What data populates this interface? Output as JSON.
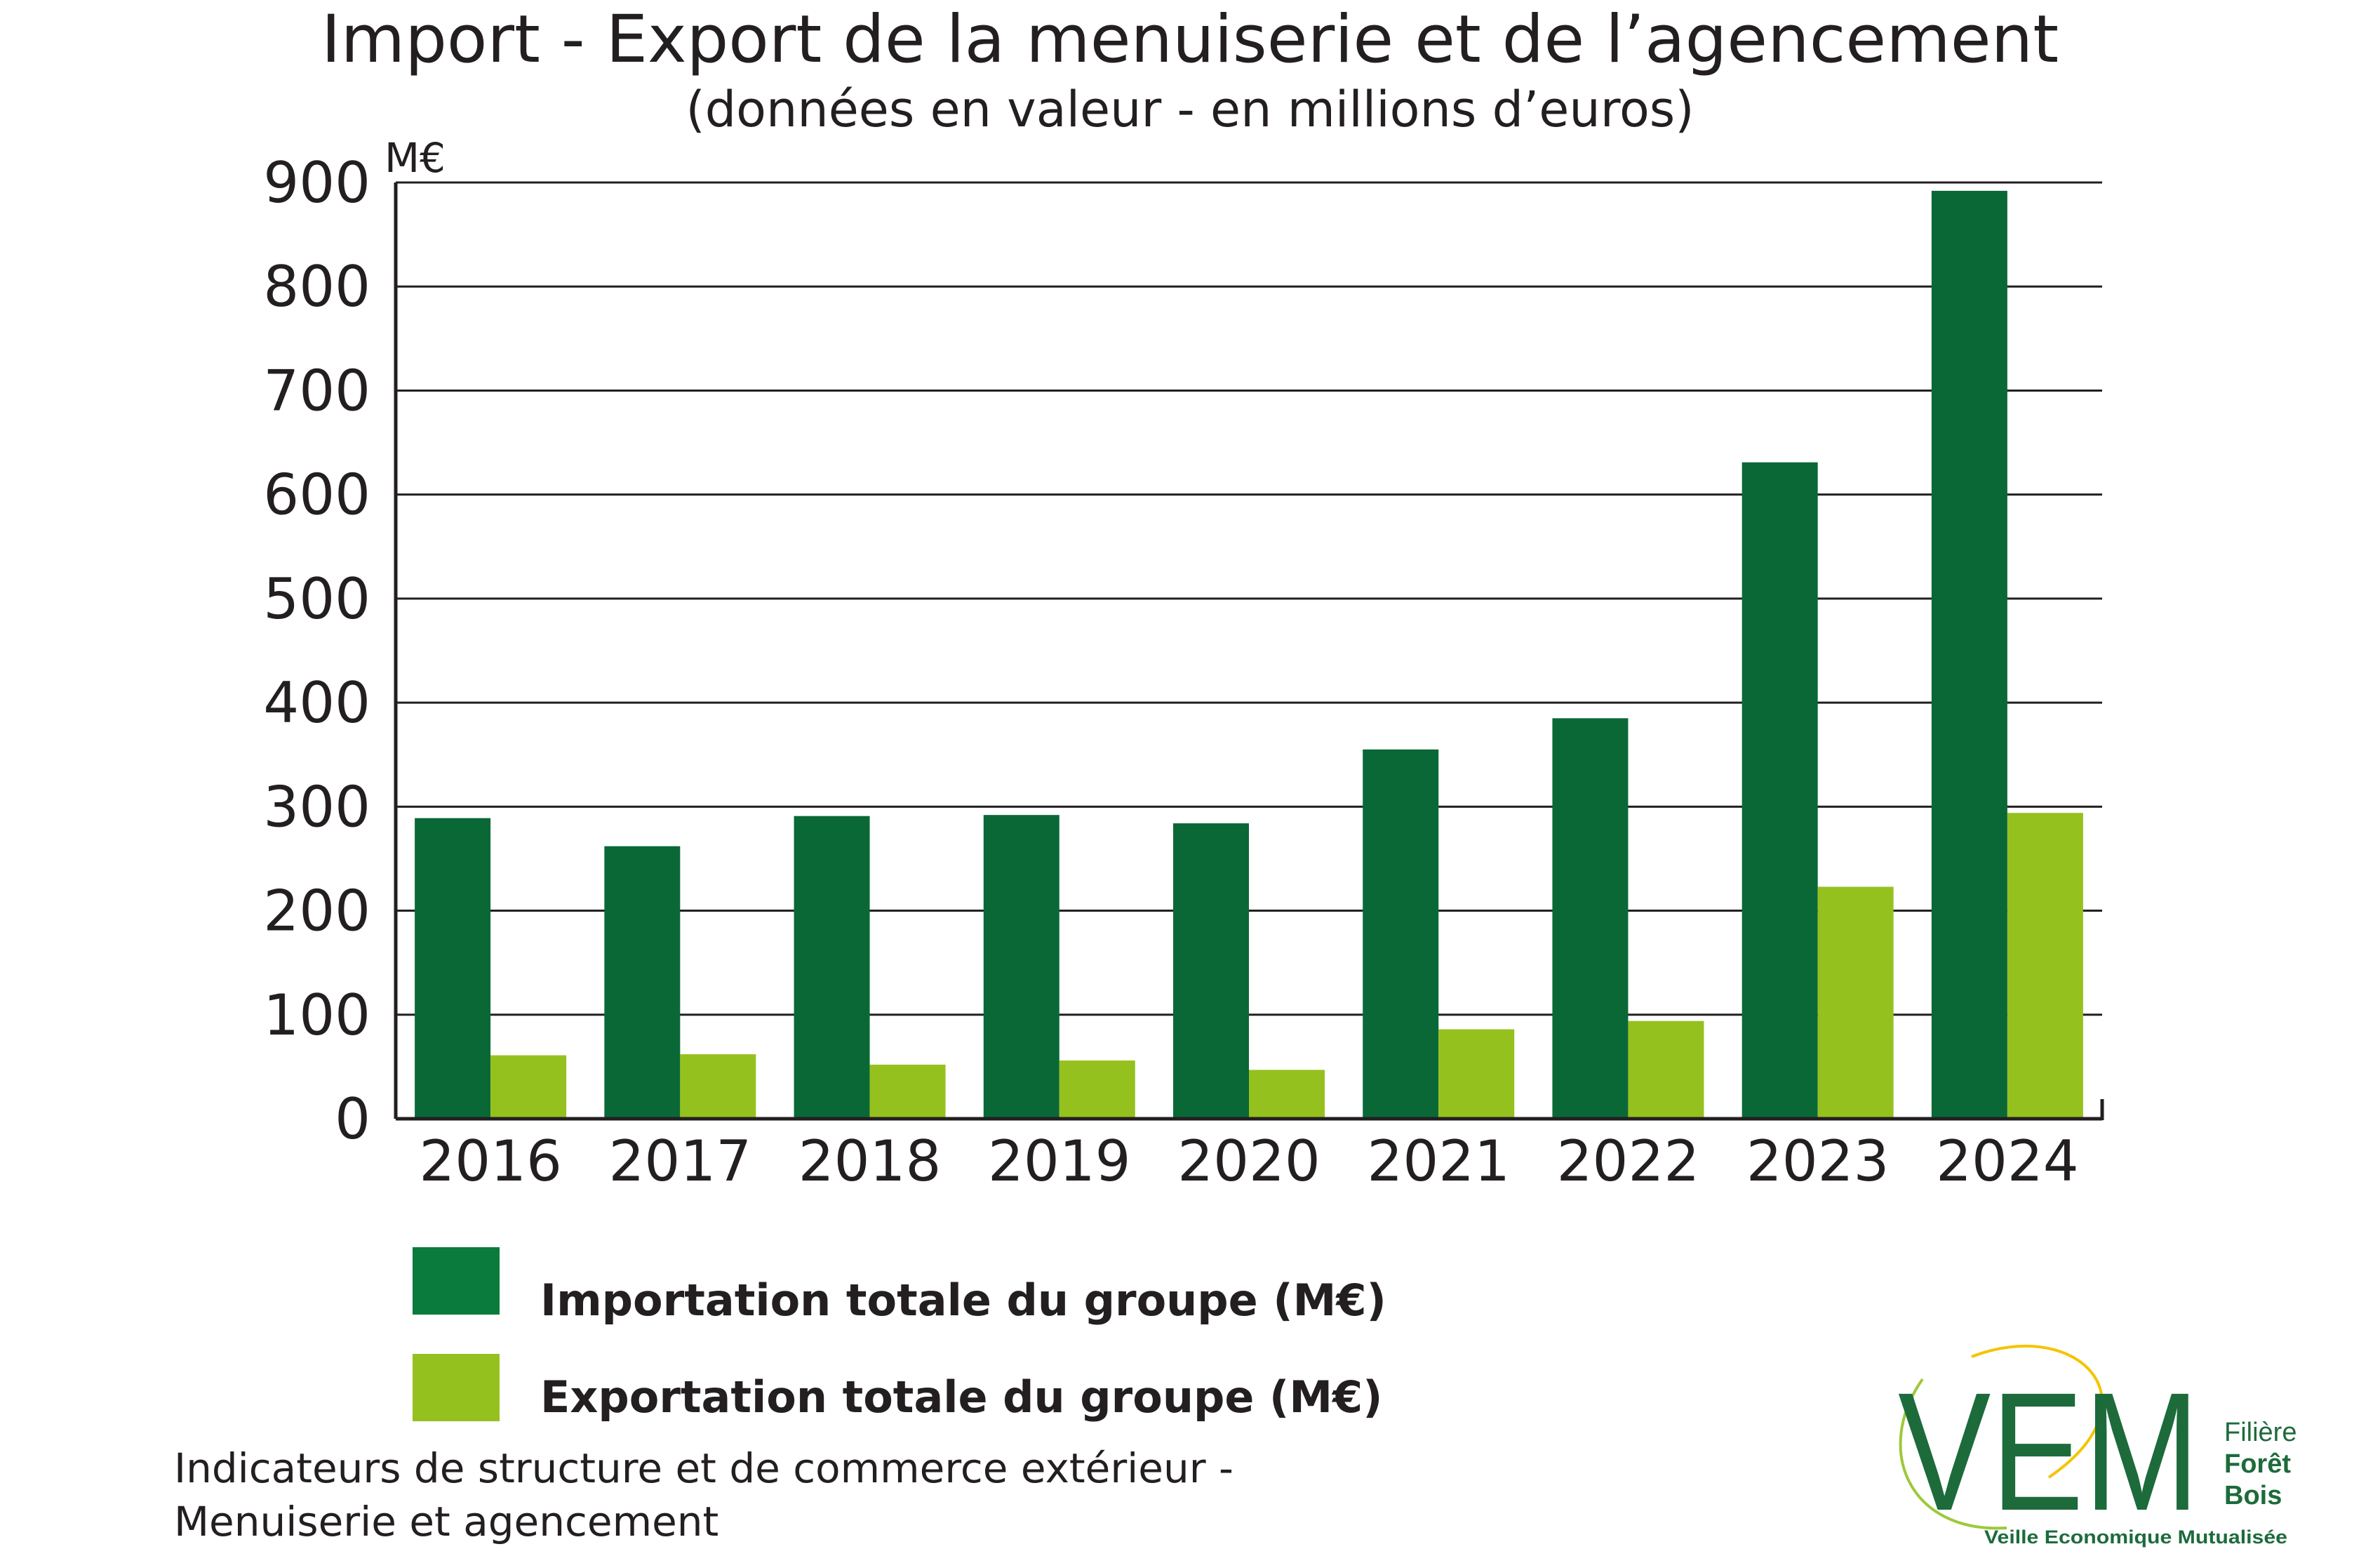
{
  "chart_data": {
    "type": "bar",
    "title": "Import - Export de la menuiserie et de l’agencement",
    "subtitle": "(données en valeur - en millions d’euros)",
    "unit_label": "M€",
    "categories": [
      "2016",
      "2017",
      "2018",
      "2019",
      "2020",
      "2021",
      "2022",
      "2023",
      "2024"
    ],
    "series": [
      {
        "name": "Importation totale du groupe (M€)",
        "color": "#0a6837",
        "values": [
          289,
          262,
          291,
          292,
          284,
          355,
          385,
          631,
          892
        ]
      },
      {
        "name": "Exportation totale du groupe (M€)",
        "color": "#95c11f",
        "values": [
          61,
          62,
          52,
          56,
          47,
          86,
          94,
          223,
          294
        ]
      }
    ],
    "ylim": [
      0,
      900
    ],
    "yticks": [
      0,
      100,
      200,
      300,
      400,
      500,
      600,
      700,
      800,
      900
    ],
    "grid": true,
    "legend_position": "bottom-left"
  },
  "footer": {
    "line1": "Indicateurs de structure et de commerce extérieur -",
    "line2": "Menuiserie et agencement"
  },
  "logo": {
    "text": "VEM",
    "line1": "Filière",
    "line2": "Forêt",
    "line3": "Bois",
    "tagline": "Veille Economique Mutualisée",
    "color": "#1d6b3b",
    "accent": "#f5c400"
  }
}
